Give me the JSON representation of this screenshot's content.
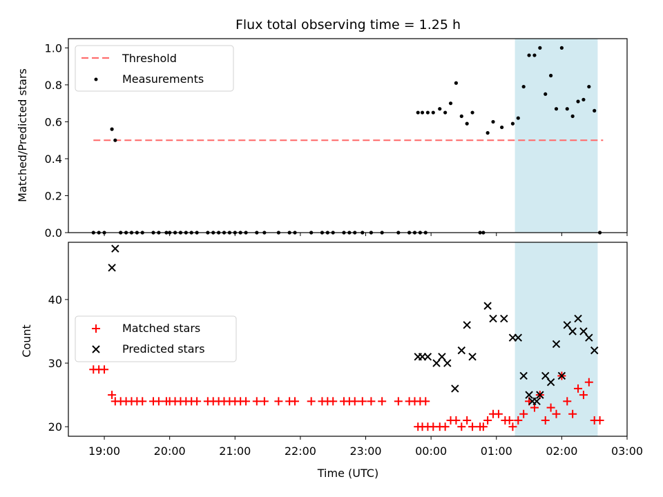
{
  "chart_data": [
    {
      "type": "scatter",
      "title": "Flux total observing time = 1.25 h",
      "xlabel": "",
      "ylabel": "Matched/Predicted stars",
      "xlim": [
        "18:27",
        "03:00"
      ],
      "ylim": [
        0,
        1.05
      ],
      "yticks": [
        "0.0",
        "0.2",
        "0.4",
        "0.6",
        "0.8",
        "1.0"
      ],
      "shaded_interval": {
        "start": "01:17",
        "end": "02:33",
        "color": "#add8e6"
      },
      "legend_position": "upper left",
      "threshold": {
        "name": "Threshold",
        "y": 0.5,
        "x_start": "18:50",
        "x_end": "02:38",
        "color": "#ff6e6e"
      },
      "series": [
        {
          "name": "Measurements",
          "color": "#000000",
          "points": [
            [
              "18:50",
              0
            ],
            [
              "18:55",
              0
            ],
            [
              "19:00",
              0
            ],
            [
              "19:07",
              0.56
            ],
            [
              "19:10",
              0.5
            ],
            [
              "19:15",
              0
            ],
            [
              "19:20",
              0
            ],
            [
              "19:25",
              0
            ],
            [
              "19:30",
              0
            ],
            [
              "19:35",
              0
            ],
            [
              "19:45",
              0
            ],
            [
              "19:50",
              0
            ],
            [
              "19:57",
              0
            ],
            [
              "20:00",
              0
            ],
            [
              "20:05",
              0
            ],
            [
              "20:10",
              0
            ],
            [
              "20:15",
              0
            ],
            [
              "20:20",
              0
            ],
            [
              "20:25",
              0
            ],
            [
              "20:35",
              0
            ],
            [
              "20:40",
              0
            ],
            [
              "20:45",
              0
            ],
            [
              "20:50",
              0
            ],
            [
              "20:55",
              0
            ],
            [
              "21:00",
              0
            ],
            [
              "21:05",
              0
            ],
            [
              "21:10",
              0
            ],
            [
              "21:20",
              0
            ],
            [
              "21:27",
              0
            ],
            [
              "21:40",
              0
            ],
            [
              "21:50",
              0
            ],
            [
              "21:55",
              0
            ],
            [
              "22:10",
              0
            ],
            [
              "22:20",
              0
            ],
            [
              "22:25",
              0
            ],
            [
              "22:30",
              0
            ],
            [
              "22:40",
              0
            ],
            [
              "22:45",
              0
            ],
            [
              "22:50",
              0
            ],
            [
              "22:57",
              0
            ],
            [
              "23:05",
              0
            ],
            [
              "23:15",
              0
            ],
            [
              "23:30",
              0
            ],
            [
              "23:40",
              0
            ],
            [
              "23:45",
              0
            ],
            [
              "23:50",
              0
            ],
            [
              "23:55",
              0
            ],
            [
              "23:48",
              0.65
            ],
            [
              "23:52",
              0.65
            ],
            [
              "23:57",
              0.65
            ],
            [
              "00:02",
              0.65
            ],
            [
              "00:08",
              0.67
            ],
            [
              "00:13",
              0.65
            ],
            [
              "00:18",
              0.7
            ],
            [
              "00:23",
              0.81
            ],
            [
              "00:28",
              0.63
            ],
            [
              "00:33",
              0.59
            ],
            [
              "00:38",
              0.65
            ],
            [
              "00:45",
              0
            ],
            [
              "00:48",
              0
            ],
            [
              "00:52",
              0.54
            ],
            [
              "00:57",
              0.6
            ],
            [
              "01:05",
              0.57
            ],
            [
              "01:15",
              0.59
            ],
            [
              "01:20",
              0.62
            ],
            [
              "01:25",
              0.79
            ],
            [
              "01:30",
              0.96
            ],
            [
              "01:35",
              0.96
            ],
            [
              "01:40",
              1.0
            ],
            [
              "01:45",
              0.75
            ],
            [
              "01:50",
              0.85
            ],
            [
              "01:55",
              0.67
            ],
            [
              "02:00",
              1.0
            ],
            [
              "02:05",
              0.67
            ],
            [
              "02:10",
              0.63
            ],
            [
              "02:15",
              0.71
            ],
            [
              "02:20",
              0.72
            ],
            [
              "02:25",
              0.79
            ],
            [
              "02:30",
              0.66
            ],
            [
              "02:35",
              0
            ]
          ]
        }
      ]
    },
    {
      "type": "scatter",
      "title": "",
      "xlabel": "Time (UTC)",
      "ylabel": "Count",
      "xlim": [
        "18:27",
        "03:00"
      ],
      "ylim": [
        18.5,
        49
      ],
      "yticks": [
        "20",
        "30",
        "40"
      ],
      "xticks": [
        "19:00",
        "20:00",
        "21:00",
        "22:00",
        "23:00",
        "00:00",
        "01:00",
        "02:00",
        "03:00"
      ],
      "shaded_interval": {
        "start": "01:17",
        "end": "02:33",
        "color": "#add8e6"
      },
      "legend_position": "center left",
      "series": [
        {
          "name": "Matched stars",
          "marker": "plus",
          "color": "#ff0000",
          "points": [
            [
              "18:50",
              29
            ],
            [
              "18:55",
              29
            ],
            [
              "19:00",
              29
            ],
            [
              "19:07",
              25
            ],
            [
              "19:10",
              24
            ],
            [
              "19:15",
              24
            ],
            [
              "19:20",
              24
            ],
            [
              "19:25",
              24
            ],
            [
              "19:30",
              24
            ],
            [
              "19:35",
              24
            ],
            [
              "19:45",
              24
            ],
            [
              "19:50",
              24
            ],
            [
              "19:57",
              24
            ],
            [
              "20:00",
              24
            ],
            [
              "20:05",
              24
            ],
            [
              "20:10",
              24
            ],
            [
              "20:15",
              24
            ],
            [
              "20:20",
              24
            ],
            [
              "20:25",
              24
            ],
            [
              "20:35",
              24
            ],
            [
              "20:40",
              24
            ],
            [
              "20:45",
              24
            ],
            [
              "20:50",
              24
            ],
            [
              "20:55",
              24
            ],
            [
              "21:00",
              24
            ],
            [
              "21:05",
              24
            ],
            [
              "21:10",
              24
            ],
            [
              "21:20",
              24
            ],
            [
              "21:27",
              24
            ],
            [
              "21:40",
              24
            ],
            [
              "21:50",
              24
            ],
            [
              "21:55",
              24
            ],
            [
              "22:10",
              24
            ],
            [
              "22:20",
              24
            ],
            [
              "22:25",
              24
            ],
            [
              "22:30",
              24
            ],
            [
              "22:40",
              24
            ],
            [
              "22:45",
              24
            ],
            [
              "22:50",
              24
            ],
            [
              "22:57",
              24
            ],
            [
              "23:05",
              24
            ],
            [
              "23:15",
              24
            ],
            [
              "23:30",
              24
            ],
            [
              "23:40",
              24
            ],
            [
              "23:45",
              24
            ],
            [
              "23:50",
              24
            ],
            [
              "23:55",
              24
            ],
            [
              "23:48",
              20
            ],
            [
              "23:52",
              20
            ],
            [
              "23:57",
              20
            ],
            [
              "00:02",
              20
            ],
            [
              "00:08",
              20
            ],
            [
              "00:13",
              20
            ],
            [
              "00:18",
              21
            ],
            [
              "00:23",
              21
            ],
            [
              "00:28",
              20
            ],
            [
              "00:33",
              21
            ],
            [
              "00:38",
              20
            ],
            [
              "00:45",
              20
            ],
            [
              "00:48",
              20
            ],
            [
              "00:52",
              21
            ],
            [
              "00:57",
              22
            ],
            [
              "01:02",
              22
            ],
            [
              "01:08",
              21
            ],
            [
              "01:12",
              21
            ],
            [
              "01:15",
              20
            ],
            [
              "01:20",
              21
            ],
            [
              "01:25",
              22
            ],
            [
              "01:30",
              24
            ],
            [
              "01:35",
              23
            ],
            [
              "01:40",
              25
            ],
            [
              "01:45",
              21
            ],
            [
              "01:50",
              23
            ],
            [
              "01:55",
              22
            ],
            [
              "02:00",
              28
            ],
            [
              "02:05",
              24
            ],
            [
              "02:10",
              22
            ],
            [
              "02:15",
              26
            ],
            [
              "02:20",
              25
            ],
            [
              "02:25",
              27
            ],
            [
              "02:30",
              21
            ],
            [
              "02:35",
              21
            ]
          ]
        },
        {
          "name": "Predicted stars",
          "marker": "x",
          "color": "#000000",
          "points": [
            [
              "19:07",
              45
            ],
            [
              "19:10",
              48
            ],
            [
              "23:48",
              31
            ],
            [
              "23:52",
              31
            ],
            [
              "23:57",
              31
            ],
            [
              "00:05",
              30
            ],
            [
              "00:10",
              31
            ],
            [
              "00:15",
              30
            ],
            [
              "00:22",
              26
            ],
            [
              "00:28",
              32
            ],
            [
              "00:33",
              36
            ],
            [
              "00:38",
              31
            ],
            [
              "00:52",
              39
            ],
            [
              "00:57",
              37
            ],
            [
              "01:07",
              37
            ],
            [
              "01:15",
              34
            ],
            [
              "01:20",
              34
            ],
            [
              "01:25",
              28
            ],
            [
              "01:30",
              25
            ],
            [
              "01:33",
              24
            ],
            [
              "01:37",
              24
            ],
            [
              "01:40",
              25
            ],
            [
              "01:45",
              28
            ],
            [
              "01:50",
              27
            ],
            [
              "01:55",
              33
            ],
            [
              "02:00",
              28
            ],
            [
              "02:05",
              36
            ],
            [
              "02:10",
              35
            ],
            [
              "02:15",
              37
            ],
            [
              "02:20",
              35
            ],
            [
              "02:25",
              34
            ],
            [
              "02:30",
              32
            ]
          ]
        }
      ]
    }
  ],
  "legend": {
    "top": [
      "Threshold",
      "Measurements"
    ],
    "bottom": [
      "Matched stars",
      "Predicted stars"
    ]
  }
}
